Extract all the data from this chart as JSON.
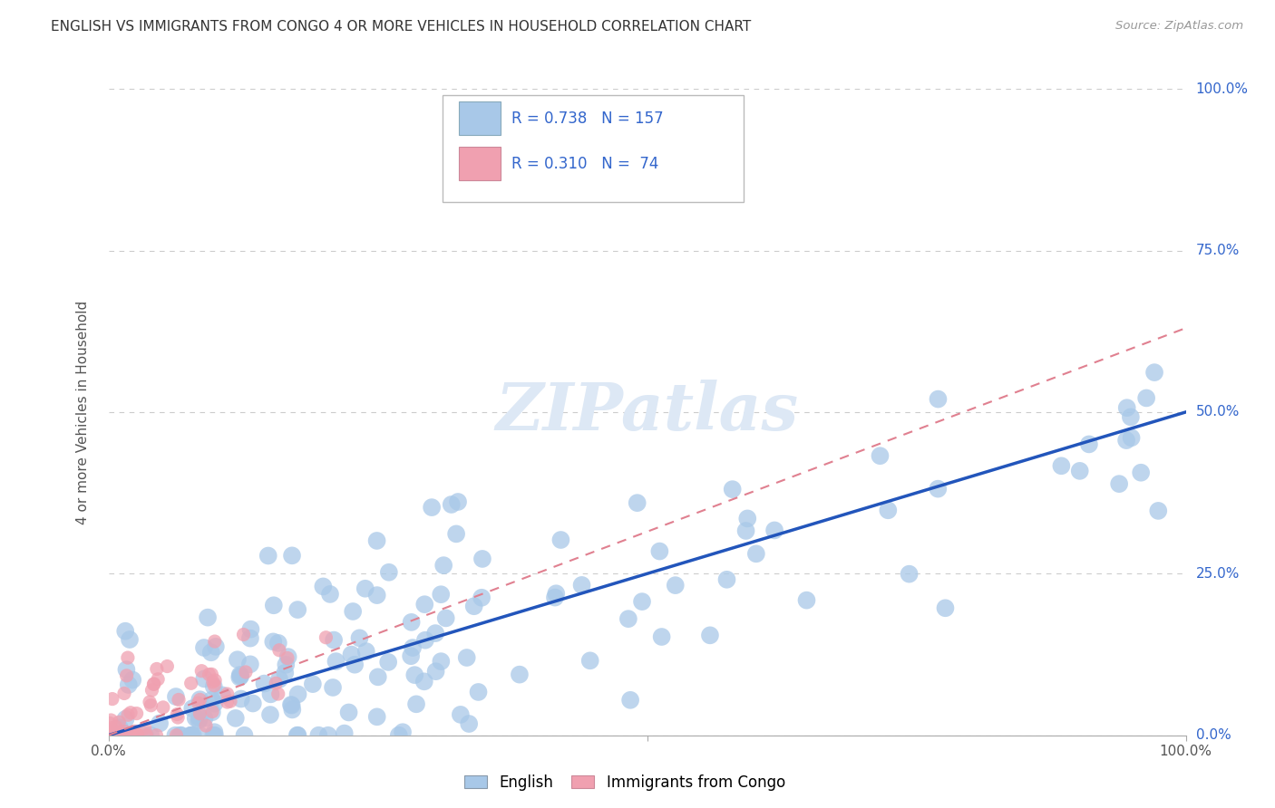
{
  "title": "ENGLISH VS IMMIGRANTS FROM CONGO 4 OR MORE VEHICLES IN HOUSEHOLD CORRELATION CHART",
  "source": "Source: ZipAtlas.com",
  "ylabel": "4 or more Vehicles in Household",
  "english_color": "#a8c8e8",
  "congo_color": "#f0a0b0",
  "english_line_color": "#2255bb",
  "congo_line_color": "#e08090",
  "english_R": 0.738,
  "english_N": 157,
  "congo_R": 0.31,
  "congo_N": 74,
  "background_color": "#ffffff",
  "grid_color": "#cccccc",
  "right_label_color": "#3366cc",
  "watermark_color": "#dde8f5",
  "title_color": "#333333",
  "source_color": "#999999",
  "ylabel_color": "#555555"
}
